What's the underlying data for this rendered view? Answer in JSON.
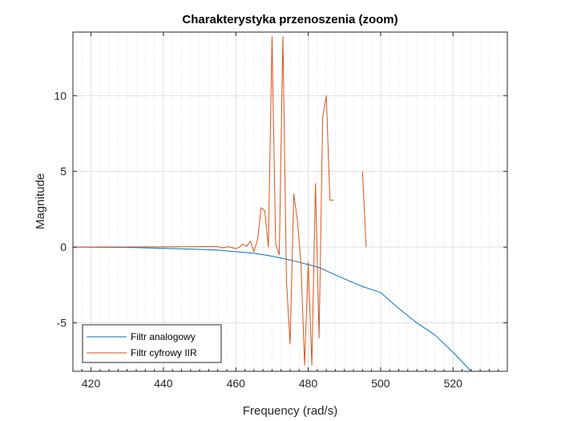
{
  "chart_data": {
    "type": "line",
    "title": "Charakterystyka przenoszenia (zoom)",
    "xlabel": "Frequency (rad/s)",
    "ylabel": "Magnitude",
    "xlim": [
      415,
      535
    ],
    "ylim": [
      -8.2,
      14.2
    ],
    "xticks": [
      420,
      440,
      460,
      480,
      500,
      520
    ],
    "yticks": [
      -5,
      0,
      5,
      10
    ],
    "x_minor_step": 2.5,
    "grid": true,
    "legend_position": "bottom-left",
    "colors": {
      "axes": "#262626",
      "grid": "#dfdfdf"
    },
    "series": [
      {
        "name": "Filtr analogowy",
        "color": "#0072BD",
        "points": [
          [
            415,
            0.0
          ],
          [
            430,
            -0.02
          ],
          [
            440,
            -0.08
          ],
          [
            450,
            -0.15
          ],
          [
            455,
            -0.2
          ],
          [
            460,
            -0.3
          ],
          [
            465,
            -0.4
          ],
          [
            470,
            -0.6
          ],
          [
            475,
            -0.85
          ],
          [
            480,
            -1.15
          ],
          [
            483,
            -1.35
          ],
          [
            490,
            -2.1
          ],
          [
            495,
            -2.6
          ],
          [
            500,
            -3.0
          ],
          [
            505,
            -4.05
          ],
          [
            510,
            -5.0
          ],
          [
            515,
            -5.8
          ],
          [
            520,
            -6.95
          ],
          [
            525,
            -8.2
          ]
        ]
      },
      {
        "name": "Filtr cyfrowy IIR",
        "color": "#D95319",
        "segments": [
          [
            [
              415,
              0.0
            ],
            [
              430,
              0.01
            ],
            [
              440,
              0.02
            ],
            [
              450,
              0.03
            ],
            [
              455,
              0.05
            ],
            [
              456,
              -0.05
            ],
            [
              458,
              0.02
            ],
            [
              460,
              -0.1
            ],
            [
              461,
              0.0
            ],
            [
              462,
              0.2
            ],
            [
              463,
              0.05
            ],
            [
              464,
              0.4
            ],
            [
              465,
              -0.3
            ],
            [
              466,
              0.5
            ],
            [
              467,
              2.6
            ],
            [
              468,
              2.4
            ],
            [
              469,
              0.0
            ],
            [
              470,
              13.9
            ],
            [
              471,
              0.2
            ],
            [
              472,
              -0.5
            ],
            [
              473,
              13.9
            ],
            [
              474,
              -2.3
            ],
            [
              475,
              -6.4
            ],
            [
              476,
              3.5
            ],
            [
              477,
              1.8
            ],
            [
              478,
              -1.1
            ],
            [
              479,
              -7.8
            ],
            [
              480,
              -1.0
            ],
            [
              481,
              -7.8
            ],
            [
              482,
              4.2
            ],
            [
              483,
              -6.0
            ],
            [
              484,
              8.6
            ],
            [
              485,
              10.0
            ],
            [
              486,
              3.1
            ],
            [
              487,
              3.1
            ]
          ],
          [
            [
              495,
              5.0
            ],
            [
              496,
              0.0
            ]
          ]
        ]
      }
    ]
  }
}
